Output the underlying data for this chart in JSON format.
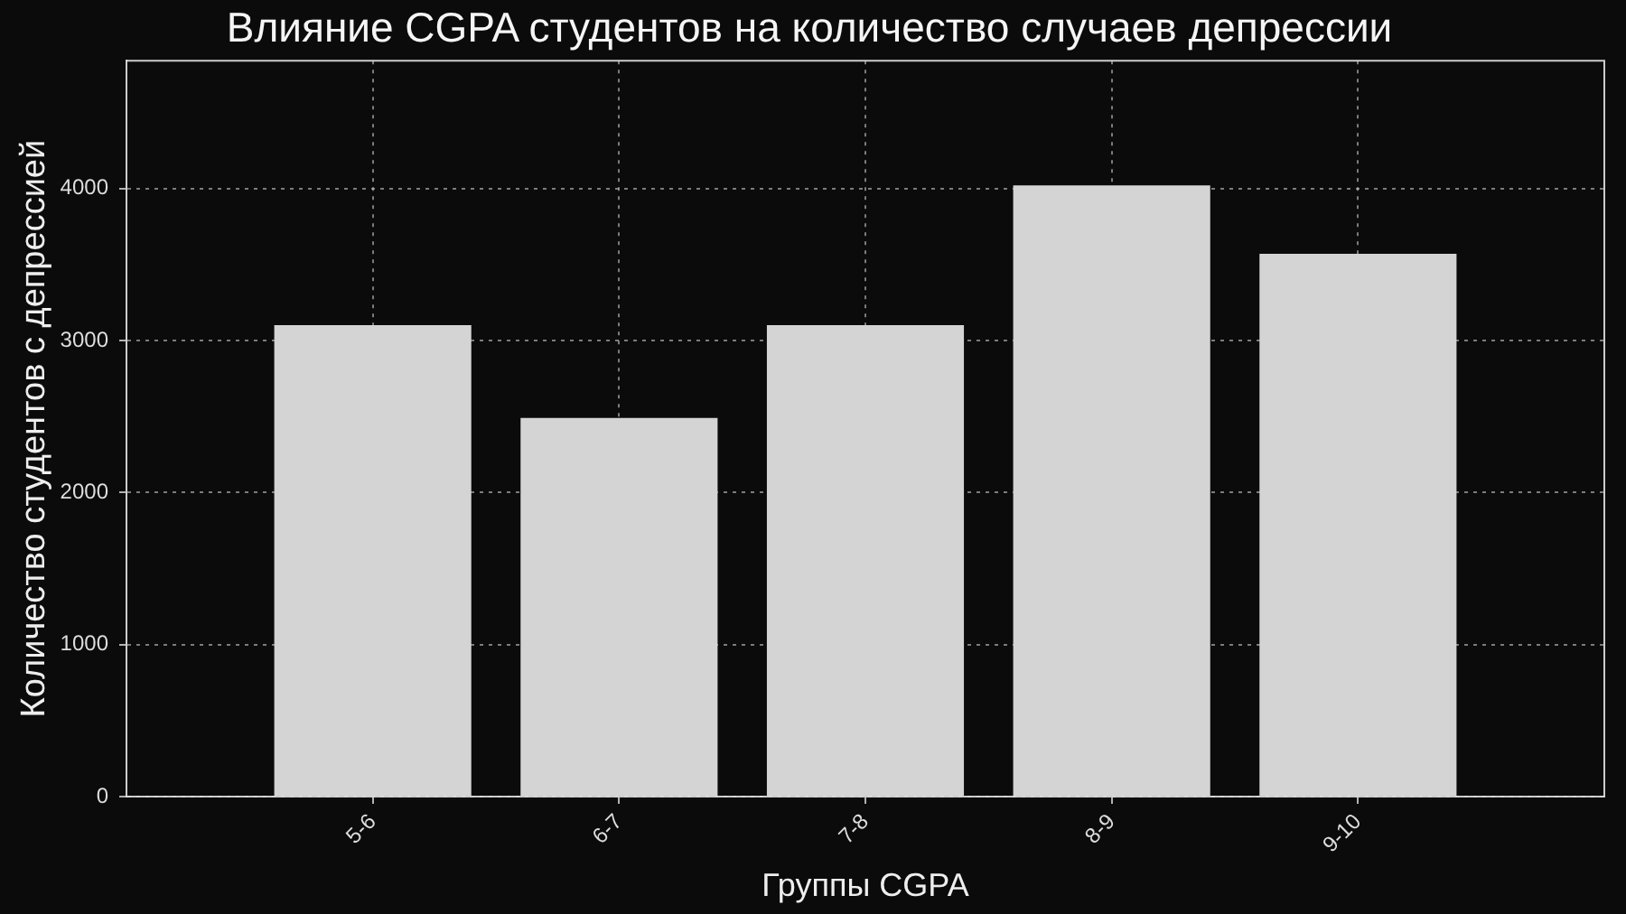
{
  "chart_data": {
    "type": "bar",
    "title": "Влияние CGPA студентов на количество случаев депрессии",
    "xlabel": "Группы CGPA",
    "ylabel": "Количество студентов с депрессией",
    "categories": [
      "5-6",
      "6-7",
      "7-8",
      "8-9",
      "9-10"
    ],
    "values": [
      3100,
      2490,
      3100,
      4020,
      3570
    ],
    "color": "#d4d4d4",
    "ylim": [
      0,
      4840
    ],
    "yticks": [
      0,
      1000,
      2000,
      3000,
      4000
    ],
    "grid": true,
    "legend": false
  }
}
